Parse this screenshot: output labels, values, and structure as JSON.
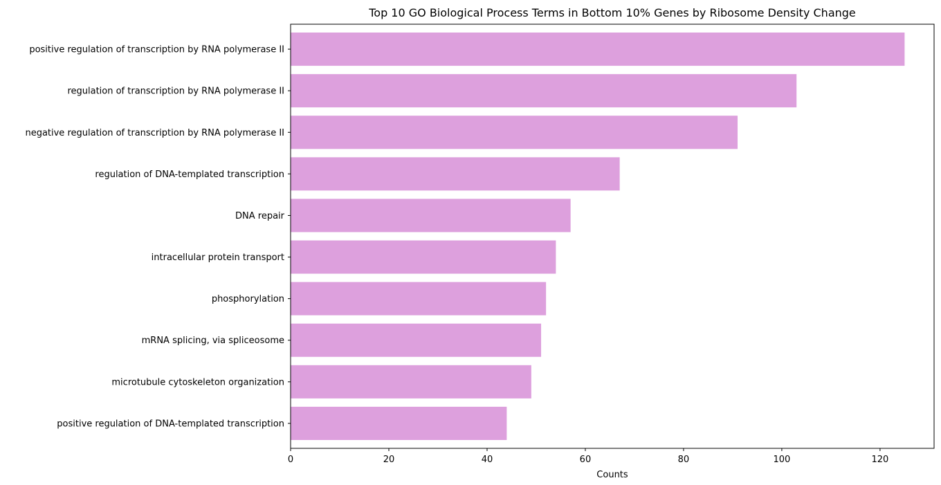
{
  "chart_data": {
    "type": "bar",
    "orientation": "horizontal",
    "title": "Top 10 GO Biological Process Terms in Bottom 10% Genes by Ribosome Density Change",
    "xlabel": "Counts",
    "ylabel": "",
    "xlim": [
      0,
      131
    ],
    "xticks": [
      0,
      20,
      40,
      60,
      80,
      100,
      120
    ],
    "bar_color": "#dda0dd",
    "grid": false,
    "categories": [
      "positive regulation of transcription by RNA polymerase II",
      "regulation of transcription by RNA polymerase II",
      "negative regulation of transcription by RNA polymerase II",
      "regulation of DNA-templated transcription",
      "DNA repair",
      "intracellular protein transport",
      "phosphorylation",
      "mRNA splicing, via spliceosome",
      "microtubule cytoskeleton organization",
      "positive regulation of DNA-templated transcription"
    ],
    "values": [
      125,
      103,
      91,
      67,
      57,
      54,
      52,
      51,
      49,
      44
    ]
  }
}
